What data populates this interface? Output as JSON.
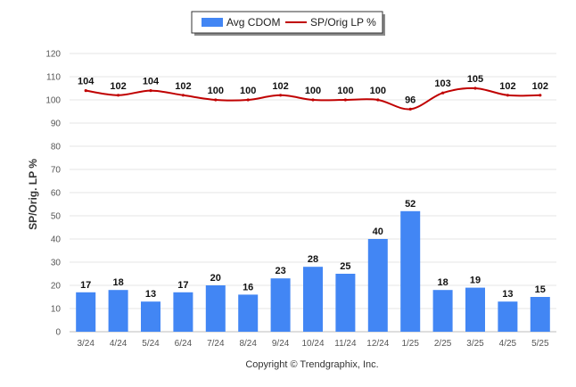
{
  "chart_data": {
    "type": "bar",
    "categories": [
      "3/24",
      "4/24",
      "5/24",
      "6/24",
      "7/24",
      "8/24",
      "9/24",
      "10/24",
      "11/24",
      "12/24",
      "1/25",
      "2/25",
      "3/25",
      "4/25",
      "5/25"
    ],
    "series": [
      {
        "name": "Avg CDOM",
        "type": "bar",
        "color": "#4286f4",
        "values": [
          17,
          18,
          13,
          17,
          20,
          16,
          23,
          28,
          25,
          40,
          52,
          18,
          19,
          13,
          15
        ]
      },
      {
        "name": "SP/Orig LP %",
        "type": "line",
        "color": "#c00000",
        "values": [
          104,
          102,
          104,
          102,
          100,
          100,
          102,
          100,
          100,
          100,
          96,
          103,
          105,
          102,
          102
        ]
      }
    ],
    "title": "",
    "xlabel": "",
    "ylabel": "SP/Orig. LP %",
    "ylim": [
      0,
      120
    ],
    "yticks": [
      0,
      10,
      20,
      30,
      40,
      50,
      60,
      70,
      80,
      90,
      100,
      110,
      120
    ],
    "grid": true,
    "legend_position": "top-center"
  },
  "footer": {
    "copyright": "Copyright © Trendgraphix, Inc."
  }
}
